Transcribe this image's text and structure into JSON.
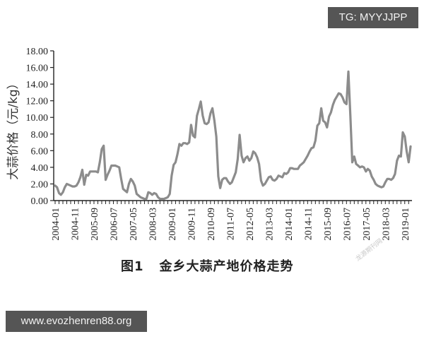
{
  "badges": {
    "top_right": "TG: MYYJJPP",
    "bottom_left": "www.evozhenren88.org"
  },
  "caption": {
    "figure_number": "图1",
    "title": "金乡大蒜产地价格走势"
  },
  "watermark": "龙源期刊网",
  "colors": {
    "line": "#8c8c8c",
    "axis": "#222222",
    "badge_bg": "#555555",
    "badge_text": "#f2f2f2"
  },
  "chart_data": {
    "type": "line",
    "title": "金乡大蒜产地价格走势",
    "xlabel": "",
    "ylabel": "大蒜价格（元/kg）",
    "ylim": [
      0,
      18
    ],
    "yticks": [
      "0.00",
      "2.00",
      "4.00",
      "6.00",
      "8.00",
      "10.00",
      "12.00",
      "14.00",
      "16.00",
      "18.00"
    ],
    "xticks": [
      "2004-01",
      "2004-11",
      "2005-09",
      "2006-07",
      "2007-05",
      "2008-03",
      "2009-01",
      "2009-11",
      "2010-09",
      "2011-07",
      "2012-05",
      "2013-03",
      "2014-01",
      "2014-11",
      "2015-09",
      "2016-07",
      "2017-05",
      "2018-03",
      "2019-01"
    ],
    "grid": false,
    "legend": "none",
    "series": [
      {
        "name": "金乡大蒜产地价格",
        "x_start": "2004-01",
        "frequency": "monthly",
        "values": [
          1.8,
          1.6,
          0.9,
          0.7,
          1.0,
          1.6,
          2.0,
          1.9,
          1.8,
          1.7,
          1.7,
          1.8,
          2.2,
          2.8,
          3.7,
          1.9,
          3.1,
          3.0,
          3.5,
          3.5,
          3.5,
          3.5,
          3.4,
          4.6,
          6.2,
          6.6,
          2.5,
          3.1,
          3.6,
          4.2,
          4.2,
          4.2,
          4.1,
          4.0,
          2.6,
          1.4,
          1.2,
          1.0,
          2.0,
          2.6,
          2.3,
          1.8,
          0.8,
          0.6,
          0.4,
          0.3,
          0.2,
          0.2,
          1.0,
          0.9,
          0.7,
          0.9,
          0.8,
          0.4,
          0.2,
          0.2,
          0.2,
          0.3,
          0.4,
          0.8,
          3.0,
          4.3,
          4.6,
          5.6,
          6.8,
          6.6,
          6.9,
          6.9,
          6.8,
          7.0,
          9.1,
          7.8,
          7.6,
          10.2,
          11.0,
          11.9,
          10.2,
          9.3,
          9.2,
          9.4,
          10.5,
          11.1,
          9.6,
          7.7,
          2.9,
          1.5,
          2.5,
          2.7,
          2.7,
          2.3,
          2.0,
          2.2,
          2.8,
          3.4,
          5.0,
          7.9,
          5.4,
          4.6,
          5.1,
          5.3,
          4.8,
          5.1,
          5.9,
          5.7,
          5.2,
          4.4,
          2.4,
          1.8,
          2.0,
          2.4,
          2.8,
          2.9,
          2.5,
          2.4,
          2.6,
          3.0,
          2.9,
          2.8,
          3.3,
          3.2,
          3.4,
          3.9,
          3.9,
          3.8,
          3.8,
          3.8,
          4.2,
          4.4,
          4.6,
          5.0,
          5.4,
          5.9,
          6.3,
          6.4,
          7.2,
          9.0,
          9.3,
          11.1,
          9.6,
          9.4,
          8.8,
          10.1,
          10.6,
          11.5,
          12.1,
          12.5,
          12.9,
          12.8,
          12.4,
          11.8,
          11.6,
          15.5,
          10.2,
          4.6,
          5.3,
          4.4,
          4.2,
          4.0,
          4.1,
          4.0,
          3.5,
          3.8,
          3.6,
          2.9,
          2.5,
          2.0,
          1.8,
          1.7,
          1.6,
          1.7,
          2.2,
          2.6,
          2.6,
          2.5,
          2.7,
          3.2,
          4.8,
          5.4,
          5.3,
          8.2,
          7.7,
          5.9,
          4.6,
          6.5
        ]
      }
    ]
  }
}
